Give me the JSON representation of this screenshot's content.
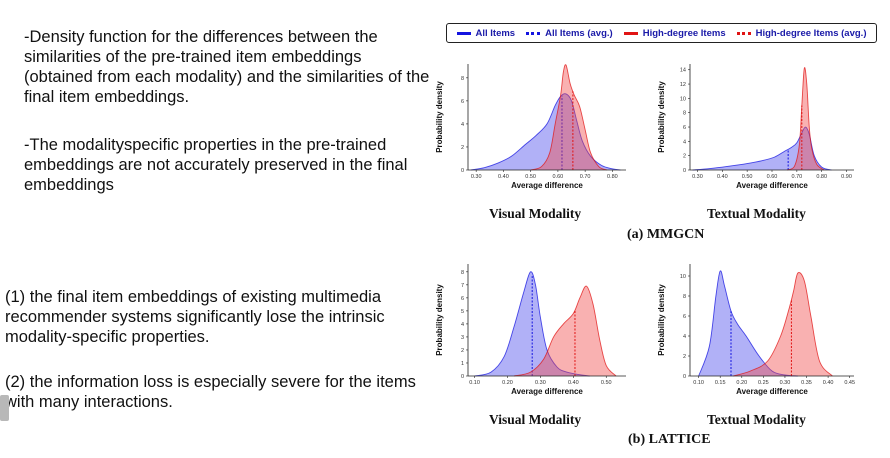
{
  "notes": {
    "block1": "-Density function for the differences between the similarities of the pre-trained item embeddings (obtained from each modality) and the similarities of the final item embeddings.",
    "block2": "-The modalityspecific properties in the pre-trained embeddings are not accurately preserved in the final embeddings",
    "block3": "(1) the final item embeddings of existing multimedia recommender systems significantly lose the intrinsic modality-specific properties.",
    "block4": "(2) the information loss is especially severe for the items with many interactions."
  },
  "legend": [
    {
      "label": "All Items",
      "color": "#1414e0",
      "style": "solid"
    },
    {
      "label": "All Items (avg.)",
      "color": "#1414e0",
      "style": "dashed"
    },
    {
      "label": "High-degree Items",
      "color": "#e01414",
      "style": "solid"
    },
    {
      "label": "High-degree Items (avg.)",
      "color": "#e01414",
      "style": "dashed"
    }
  ],
  "captions": {
    "a": "(a) MMGCN",
    "b": "(b) LATTICE"
  },
  "chart_data": [
    {
      "type": "area",
      "group": "(a) MMGCN",
      "title": "Visual Modality",
      "xlabel": "Average difference",
      "ylabel": "Probability density",
      "xlim": [
        0.27,
        0.85
      ],
      "ylim": [
        0,
        9.2
      ],
      "xticks": [
        "0.30",
        "0.40",
        "0.50",
        "0.60",
        "0.70",
        "0.80"
      ],
      "yticks": [
        "0",
        "2",
        "4",
        "6",
        "8"
      ],
      "series": [
        {
          "name": "All Items",
          "color": "#1414e0",
          "x": [
            0.28,
            0.33,
            0.38,
            0.43,
            0.48,
            0.52,
            0.56,
            0.59,
            0.61,
            0.63,
            0.65,
            0.67,
            0.69,
            0.72,
            0.76,
            0.8,
            0.83
          ],
          "y": [
            0,
            0.2,
            0.6,
            1.2,
            2.2,
            3.0,
            4.0,
            5.6,
            6.4,
            6.6,
            6.0,
            4.2,
            2.5,
            1.2,
            0.4,
            0.1,
            0
          ],
          "avg": 0.615
        },
        {
          "name": "High-degree Items",
          "color": "#e01414",
          "x": [
            0.5,
            0.54,
            0.57,
            0.59,
            0.61,
            0.62,
            0.63,
            0.645,
            0.66,
            0.68,
            0.7,
            0.72,
            0.75,
            0.78
          ],
          "y": [
            0,
            0.3,
            1.5,
            4.0,
            6.5,
            8.5,
            9.1,
            7.5,
            6.5,
            5.5,
            3.5,
            1.5,
            0.3,
            0
          ],
          "avg": 0.655
        }
      ]
    },
    {
      "type": "area",
      "group": "(a) MMGCN",
      "title": "Textual Modality",
      "xlabel": "Average difference",
      "ylabel": "Probability density",
      "xlim": [
        0.27,
        0.93
      ],
      "ylim": [
        0,
        14.8
      ],
      "xticks": [
        "0.30",
        "0.40",
        "0.50",
        "0.60",
        "0.70",
        "0.80",
        "0.90"
      ],
      "yticks": [
        "0",
        "2",
        "4",
        "6",
        "8",
        "10",
        "12",
        "14"
      ],
      "series": [
        {
          "name": "All Items",
          "color": "#1414e0",
          "x": [
            0.28,
            0.35,
            0.42,
            0.5,
            0.56,
            0.61,
            0.65,
            0.68,
            0.7,
            0.72,
            0.735,
            0.75,
            0.77,
            0.8,
            0.84
          ],
          "y": [
            0,
            0.2,
            0.5,
            0.9,
            1.3,
            1.8,
            2.6,
            3.2,
            3.8,
            5.2,
            6.0,
            5.0,
            2.0,
            0.4,
            0
          ],
          "avg": 0.665
        },
        {
          "name": "High-degree Items",
          "color": "#e01414",
          "x": [
            0.66,
            0.69,
            0.71,
            0.72,
            0.73,
            0.74,
            0.75,
            0.76,
            0.78,
            0.81
          ],
          "y": [
            0,
            0.5,
            3.5,
            9.0,
            14.2,
            12.0,
            6.0,
            3.0,
            0.8,
            0
          ],
          "avg": 0.72
        }
      ]
    },
    {
      "type": "area",
      "group": "(b) LATTICE",
      "title": "Visual Modality",
      "xlabel": "Average difference",
      "ylabel": "Probability density",
      "xlim": [
        0.08,
        0.56
      ],
      "ylim": [
        0,
        8.6
      ],
      "xticks": [
        "0.10",
        "0.20",
        "0.30",
        "0.40",
        "0.50"
      ],
      "yticks": [
        "0",
        "1",
        "2",
        "3",
        "4",
        "5",
        "6",
        "7",
        "8"
      ],
      "series": [
        {
          "name": "All Items",
          "color": "#1414e0",
          "x": [
            0.1,
            0.15,
            0.19,
            0.22,
            0.25,
            0.27,
            0.285,
            0.3,
            0.32,
            0.35,
            0.38,
            0.42,
            0.45
          ],
          "y": [
            0,
            0.3,
            1.5,
            3.8,
            6.5,
            8.0,
            7.0,
            4.5,
            2.0,
            0.7,
            0.3,
            0.1,
            0
          ],
          "avg": 0.275
        },
        {
          "name": "High-degree Items",
          "color": "#e01414",
          "x": [
            0.22,
            0.27,
            0.31,
            0.34,
            0.37,
            0.4,
            0.42,
            0.44,
            0.46,
            0.48,
            0.5,
            0.53
          ],
          "y": [
            0,
            0.3,
            1.3,
            3.0,
            4.0,
            4.8,
            6.0,
            6.9,
            5.5,
            2.8,
            0.8,
            0
          ],
          "avg": 0.405
        }
      ]
    },
    {
      "type": "area",
      "group": "(b) LATTICE",
      "title": "Textual Modality",
      "xlabel": "Average difference",
      "ylabel": "Probability density",
      "xlim": [
        0.08,
        0.46
      ],
      "ylim": [
        0,
        11.2
      ],
      "xticks": [
        "0.10",
        "0.15",
        "0.20",
        "0.25",
        "0.30",
        "0.35",
        "0.40",
        "0.45"
      ],
      "yticks": [
        "0",
        "2",
        "4",
        "6",
        "8",
        "10"
      ],
      "series": [
        {
          "name": "All Items",
          "color": "#1414e0",
          "x": [
            0.1,
            0.125,
            0.14,
            0.15,
            0.16,
            0.175,
            0.19,
            0.21,
            0.24,
            0.27,
            0.3,
            0.33
          ],
          "y": [
            0,
            3.0,
            8.0,
            10.5,
            9.0,
            6.5,
            5.2,
            4.0,
            2.0,
            0.5,
            0.1,
            0
          ],
          "avg": 0.175
        },
        {
          "name": "High-degree Items",
          "color": "#e01414",
          "x": [
            0.18,
            0.22,
            0.26,
            0.29,
            0.31,
            0.32,
            0.33,
            0.345,
            0.36,
            0.38,
            0.41
          ],
          "y": [
            0,
            0.5,
            1.5,
            4.0,
            6.8,
            8.5,
            10.3,
            9.5,
            6.0,
            1.5,
            0
          ],
          "avg": 0.315
        }
      ]
    }
  ]
}
